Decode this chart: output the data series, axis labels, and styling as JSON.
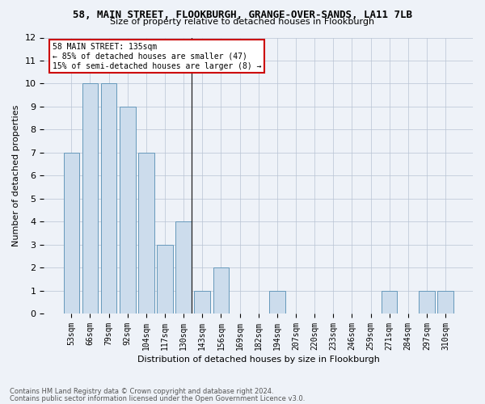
{
  "title": "58, MAIN STREET, FLOOKBURGH, GRANGE-OVER-SANDS, LA11 7LB",
  "subtitle": "Size of property relative to detached houses in Flookburgh",
  "xlabel": "Distribution of detached houses by size in Flookburgh",
  "ylabel": "Number of detached properties",
  "categories": [
    "53sqm",
    "66sqm",
    "79sqm",
    "92sqm",
    "104sqm",
    "117sqm",
    "130sqm",
    "143sqm",
    "156sqm",
    "169sqm",
    "182sqm",
    "194sqm",
    "207sqm",
    "220sqm",
    "233sqm",
    "246sqm",
    "259sqm",
    "271sqm",
    "284sqm",
    "297sqm",
    "310sqm"
  ],
  "values": [
    7,
    10,
    10,
    9,
    7,
    3,
    4,
    1,
    2,
    0,
    0,
    1,
    0,
    0,
    0,
    0,
    0,
    1,
    0,
    1,
    1
  ],
  "bar_color": "#ccdcec",
  "bar_edge_color": "#6699bb",
  "annotation_title": "58 MAIN STREET: 135sqm",
  "annotation_line1": "← 85% of detached houses are smaller (47)",
  "annotation_line2": "15% of semi-detached houses are larger (8) →",
  "annotation_box_color": "#ffffff",
  "annotation_box_edge_color": "#cc0000",
  "ylim": [
    0,
    12
  ],
  "yticks": [
    0,
    1,
    2,
    3,
    4,
    5,
    6,
    7,
    8,
    9,
    10,
    11,
    12
  ],
  "vline_x_index": 6,
  "footer_line1": "Contains HM Land Registry data © Crown copyright and database right 2024.",
  "footer_line2": "Contains public sector information licensed under the Open Government Licence v3.0.",
  "bg_color": "#eef2f8"
}
